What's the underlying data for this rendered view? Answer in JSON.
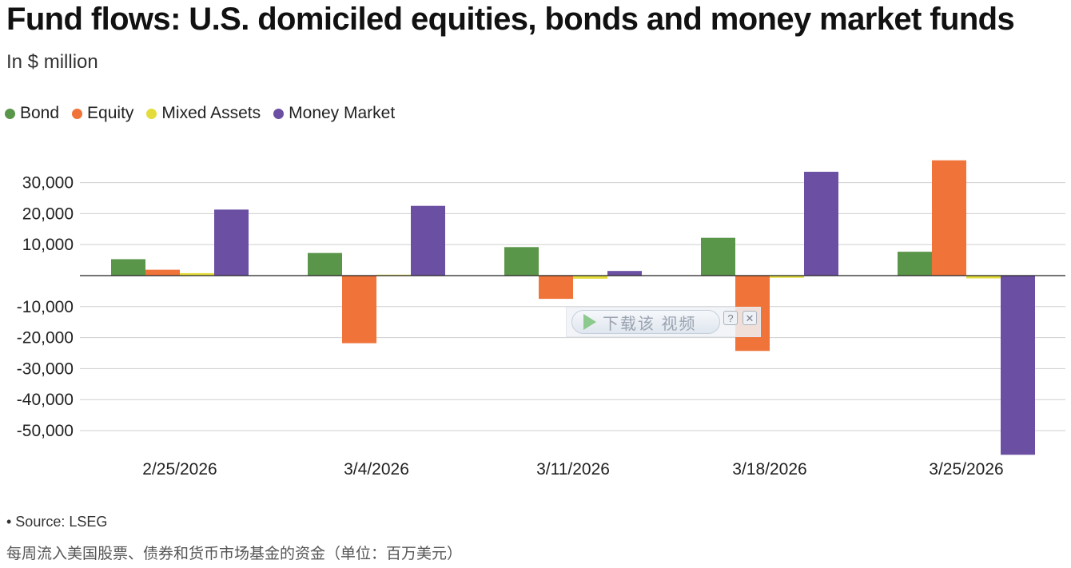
{
  "title": "Fund flows: U.S. domiciled equities, bonds and money market funds",
  "subtitle": "In $ million",
  "source": "• Source: LSEG",
  "caption": "每周流入美国股票、债券和货币市场基金的资金（单位：百万美元）",
  "overlay": {
    "label": "下载该 视频",
    "help": "?",
    "close": "✕"
  },
  "chart_data": {
    "type": "bar",
    "title": "Fund flows: U.S. domiciled equities, bonds and money market funds",
    "ylabel": "",
    "xlabel": "",
    "ylim": [
      -58000,
      40000
    ],
    "yticks": [
      30000,
      20000,
      10000,
      0,
      -10000,
      -20000,
      -30000,
      -40000,
      -50000
    ],
    "ytick_labels": [
      "30,000",
      "20,000",
      "10,000",
      "",
      "-10,000",
      "-20,000",
      "-30,000",
      "-40,000",
      "-50,000"
    ],
    "categories": [
      "2/25/2026",
      "3/4/2026",
      "3/11/2026",
      "3/18/2026",
      "3/25/2026"
    ],
    "legend_position": "top-left",
    "grid": true,
    "series": [
      {
        "name": "Bond",
        "color": "#5a964a",
        "values": [
          5300,
          7300,
          9200,
          12200,
          7700
        ]
      },
      {
        "name": "Equity",
        "color": "#f07339",
        "values": [
          1900,
          -21800,
          -7500,
          -24300,
          37200
        ]
      },
      {
        "name": "Mixed Assets",
        "color": "#e3dc3a",
        "values": [
          800,
          300,
          -1000,
          -700,
          -900
        ]
      },
      {
        "name": "Money Market",
        "color": "#6b4fa3",
        "values": [
          21300,
          22500,
          1500,
          33500,
          -57800
        ]
      }
    ]
  }
}
